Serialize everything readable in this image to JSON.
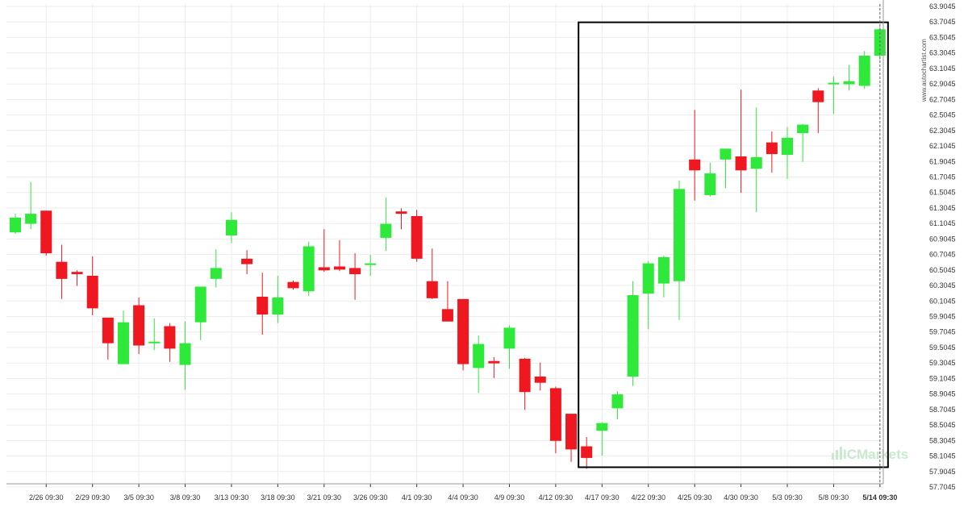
{
  "watermark": "www.autochartist.com",
  "brand": "ICMarkets",
  "colors": {
    "up": "#2ee83a",
    "down": "#f01820",
    "grid": "#ececec",
    "box": "#000000",
    "axis": "#333333",
    "brand": "#c9e9cf"
  },
  "chart_data": {
    "type": "candlestick",
    "title": "",
    "xlabel": "",
    "ylabel": "",
    "ylim": [
      57.7045,
      63.9045
    ],
    "grid": true,
    "y_ticks": [
      "63.9045",
      "63.7045",
      "63.5045",
      "63.3045",
      "63.1045",
      "62.9045",
      "62.7045",
      "62.5045",
      "62.3045",
      "62.1045",
      "61.9045",
      "61.7045",
      "61.5045",
      "61.3045",
      "61.1045",
      "60.9045",
      "60.7045",
      "60.5045",
      "60.3045",
      "60.1045",
      "59.9045",
      "59.7045",
      "59.5045",
      "59.3045",
      "59.1045",
      "58.9045",
      "58.7045",
      "58.5045",
      "58.3045",
      "58.1045",
      "57.9045",
      "57.7045"
    ],
    "x_ticks": [
      {
        "label": "2/26 09:30",
        "index": 2
      },
      {
        "label": "2/29 09:30",
        "index": 5
      },
      {
        "label": "3/5 09:30",
        "index": 8
      },
      {
        "label": "3/8 09:30",
        "index": 11
      },
      {
        "label": "3/13 09:30",
        "index": 14
      },
      {
        "label": "3/18 09:30",
        "index": 17
      },
      {
        "label": "3/21 09:30",
        "index": 20
      },
      {
        "label": "3/26 09:30",
        "index": 23
      },
      {
        "label": "4/1 09:30",
        "index": 26
      },
      {
        "label": "4/4 09:30",
        "index": 29
      },
      {
        "label": "4/9 09:30",
        "index": 32
      },
      {
        "label": "4/12 09:30",
        "index": 35
      },
      {
        "label": "4/17 09:30",
        "index": 38
      },
      {
        "label": "4/22 09:30",
        "index": 41
      },
      {
        "label": "4/25 09:30",
        "index": 44
      },
      {
        "label": "4/30 09:30",
        "index": 47
      },
      {
        "label": "5/3 09:30",
        "index": 50
      },
      {
        "label": "5/8 09:30",
        "index": 53
      },
      {
        "label": "5/14 09:30",
        "index": 56
      }
    ],
    "highlight_box": {
      "from_index": 37,
      "to_index": 56,
      "ylow": 57.96,
      "yhigh": 63.7
    },
    "current_marker_index": 56,
    "candles": [
      {
        "o": 60.99,
        "h": 61.23,
        "l": 60.97,
        "c": 61.18
      },
      {
        "o": 61.1,
        "h": 61.64,
        "l": 61.03,
        "c": 61.23
      },
      {
        "o": 61.27,
        "h": 61.27,
        "l": 60.69,
        "c": 60.72
      },
      {
        "o": 60.61,
        "h": 60.83,
        "l": 60.13,
        "c": 60.39
      },
      {
        "o": 60.48,
        "h": 60.5,
        "l": 60.3,
        "c": 60.45
      },
      {
        "o": 60.43,
        "h": 60.68,
        "l": 59.92,
        "c": 60.01
      },
      {
        "o": 59.89,
        "h": 59.89,
        "l": 59.35,
        "c": 59.56
      },
      {
        "o": 59.29,
        "h": 59.98,
        "l": 59.29,
        "c": 59.83
      },
      {
        "o": 60.05,
        "h": 60.15,
        "l": 59.42,
        "c": 59.53
      },
      {
        "o": 59.58,
        "h": 59.88,
        "l": 59.47,
        "c": 59.58
      },
      {
        "o": 59.78,
        "h": 59.82,
        "l": 59.32,
        "c": 59.49
      },
      {
        "o": 59.28,
        "h": 59.84,
        "l": 58.96,
        "c": 59.56
      },
      {
        "o": 59.83,
        "h": 60.26,
        "l": 59.6,
        "c": 60.29
      },
      {
        "o": 60.39,
        "h": 60.77,
        "l": 60.28,
        "c": 60.53
      },
      {
        "o": 60.95,
        "h": 61.25,
        "l": 60.85,
        "c": 61.15
      },
      {
        "o": 60.65,
        "h": 60.76,
        "l": 60.45,
        "c": 60.58
      },
      {
        "o": 60.16,
        "h": 60.47,
        "l": 59.67,
        "c": 59.93
      },
      {
        "o": 59.93,
        "h": 60.43,
        "l": 59.82,
        "c": 60.15
      },
      {
        "o": 60.35,
        "h": 60.37,
        "l": 60.25,
        "c": 60.27
      },
      {
        "o": 60.23,
        "h": 60.87,
        "l": 60.17,
        "c": 60.81
      },
      {
        "o": 60.54,
        "h": 61.03,
        "l": 60.48,
        "c": 60.5
      },
      {
        "o": 60.55,
        "h": 60.89,
        "l": 60.49,
        "c": 60.51
      },
      {
        "o": 60.53,
        "h": 60.72,
        "l": 60.12,
        "c": 60.45
      },
      {
        "o": 60.57,
        "h": 60.7,
        "l": 60.43,
        "c": 60.59
      },
      {
        "o": 60.92,
        "h": 61.44,
        "l": 60.75,
        "c": 61.1
      },
      {
        "o": 61.26,
        "h": 61.3,
        "l": 61.03,
        "c": 61.23
      },
      {
        "o": 61.2,
        "h": 61.28,
        "l": 60.61,
        "c": 60.65
      },
      {
        "o": 60.36,
        "h": 60.78,
        "l": 60.13,
        "c": 60.14
      },
      {
        "o": 60.0,
        "h": 60.36,
        "l": 59.84,
        "c": 59.84
      },
      {
        "o": 60.13,
        "h": 60.13,
        "l": 59.21,
        "c": 59.29
      },
      {
        "o": 59.24,
        "h": 59.66,
        "l": 58.92,
        "c": 59.55
      },
      {
        "o": 59.33,
        "h": 59.38,
        "l": 59.11,
        "c": 59.3
      },
      {
        "o": 59.49,
        "h": 59.79,
        "l": 59.23,
        "c": 59.76
      },
      {
        "o": 59.36,
        "h": 59.37,
        "l": 58.7,
        "c": 58.93
      },
      {
        "o": 59.13,
        "h": 59.31,
        "l": 58.95,
        "c": 59.05
      },
      {
        "o": 58.98,
        "h": 59.0,
        "l": 58.14,
        "c": 58.3
      },
      {
        "o": 58.65,
        "h": 58.65,
        "l": 58.03,
        "c": 58.19
      },
      {
        "o": 58.23,
        "h": 58.35,
        "l": 57.94,
        "c": 58.08
      },
      {
        "o": 58.43,
        "h": 58.54,
        "l": 58.11,
        "c": 58.53
      },
      {
        "o": 58.72,
        "h": 58.94,
        "l": 58.58,
        "c": 58.9
      },
      {
        "o": 59.13,
        "h": 60.36,
        "l": 59.01,
        "c": 60.18
      },
      {
        "o": 60.2,
        "h": 60.62,
        "l": 59.74,
        "c": 60.59
      },
      {
        "o": 60.33,
        "h": 60.69,
        "l": 60.15,
        "c": 60.67
      },
      {
        "o": 60.36,
        "h": 61.66,
        "l": 59.86,
        "c": 61.55
      },
      {
        "o": 61.93,
        "h": 62.57,
        "l": 61.4,
        "c": 61.79
      },
      {
        "o": 61.47,
        "h": 61.89,
        "l": 61.45,
        "c": 61.75
      },
      {
        "o": 61.93,
        "h": 62.05,
        "l": 61.56,
        "c": 62.07
      },
      {
        "o": 61.97,
        "h": 62.83,
        "l": 61.5,
        "c": 61.79
      },
      {
        "o": 61.81,
        "h": 62.6,
        "l": 61.25,
        "c": 61.96
      },
      {
        "o": 62.15,
        "h": 62.29,
        "l": 61.76,
        "c": 62.0
      },
      {
        "o": 61.99,
        "h": 62.35,
        "l": 61.68,
        "c": 62.21
      },
      {
        "o": 62.27,
        "h": 62.39,
        "l": 61.9,
        "c": 62.38
      },
      {
        "o": 62.82,
        "h": 62.85,
        "l": 62.27,
        "c": 62.67
      },
      {
        "o": 62.92,
        "h": 63.0,
        "l": 62.52,
        "c": 62.92
      },
      {
        "o": 62.9,
        "h": 63.15,
        "l": 62.82,
        "c": 62.94
      },
      {
        "o": 62.88,
        "h": 63.33,
        "l": 62.84,
        "c": 63.27
      },
      {
        "o": 63.27,
        "h": 63.64,
        "l": 63.22,
        "c": 63.61
      }
    ]
  }
}
